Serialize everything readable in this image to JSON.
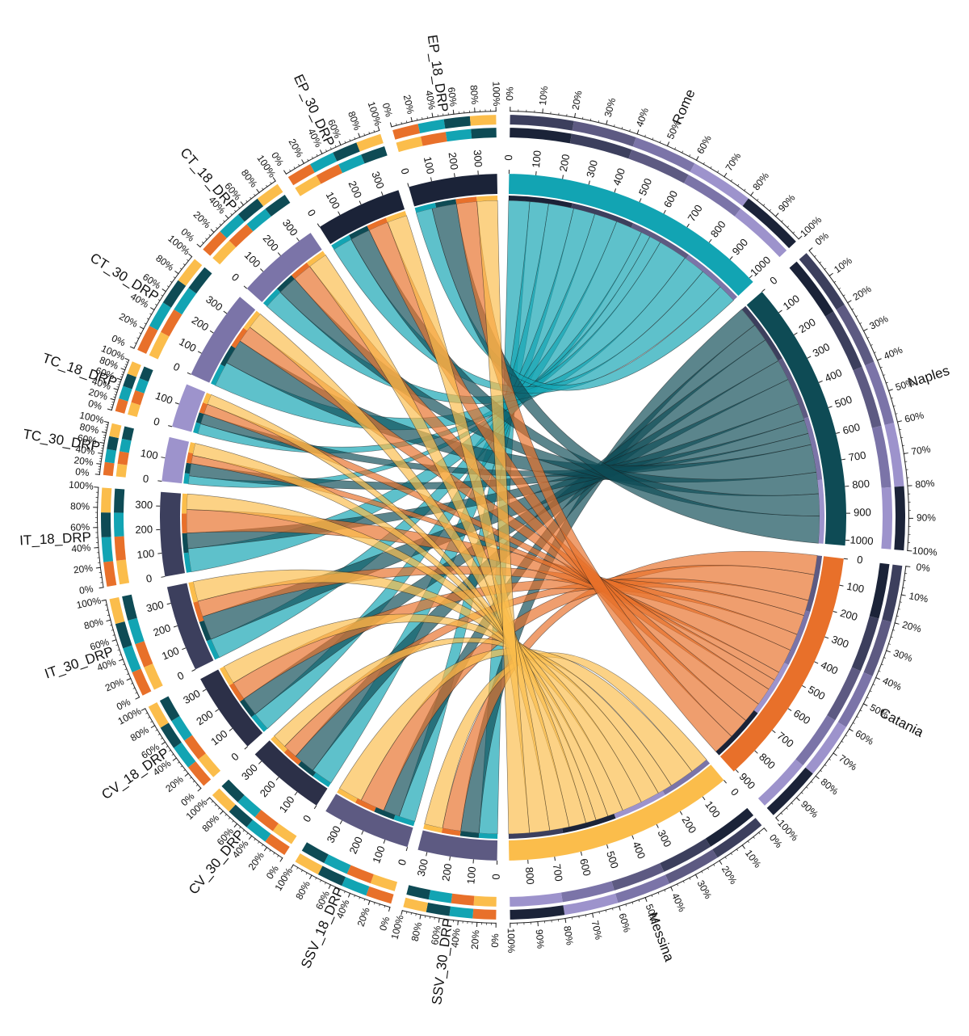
{
  "chart_data": {
    "type": "chord",
    "title": "",
    "palette": {
      "rome": "#12a4b3",
      "naples": "#0e4b55",
      "catania": "#e8702a",
      "messina": "#fbbd4b",
      "dark_navy": "#1b2338",
      "dark_slate": "#3c3f5d",
      "slate_purple": "#5d5a82",
      "mid_purple": "#7b74a8",
      "light_purple": "#9d93cc"
    },
    "sources": [
      {
        "name": "Rome",
        "size": 1020,
        "color": "#12a4b3",
        "ticks": [
          0,
          100,
          200,
          300,
          400,
          500,
          600,
          700,
          800,
          900,
          1000
        ]
      },
      {
        "name": "Naples",
        "size": 1020,
        "color": "#0e4b55",
        "ticks": [
          0,
          100,
          200,
          300,
          400,
          500,
          600,
          700,
          800,
          900,
          1000
        ]
      },
      {
        "name": "Catania",
        "size": 910,
        "color": "#e8702a",
        "ticks": [
          0,
          100,
          200,
          300,
          400,
          500,
          600,
          700,
          800,
          900
        ]
      },
      {
        "name": "Messina",
        "size": 870,
        "color": "#fbbd4b",
        "ticks": [
          0,
          100,
          200,
          300,
          400,
          500,
          600,
          700,
          800
        ]
      }
    ],
    "targets": [
      {
        "name": "SSV_30_DRP",
        "size": 340,
        "color": "#5d5a82",
        "ticks": [
          0,
          100,
          200,
          300
        ],
        "composition": [
          0.25,
          0.25,
          0.25,
          0.25
        ]
      },
      {
        "name": "SSV_18_DRP",
        "size": 380,
        "color": "#5d5a82",
        "ticks": [
          0,
          100,
          200,
          300
        ],
        "composition": [
          0.2,
          0.2,
          0.3,
          0.3
        ]
      },
      {
        "name": "CV_30_DRP",
        "size": 340,
        "color": "#2c3048",
        "ticks": [
          0,
          100,
          200,
          300
        ],
        "composition": [
          0.3,
          0.3,
          0.2,
          0.2
        ]
      },
      {
        "name": "CV_18_DRP",
        "size": 350,
        "color": "#2c3048",
        "ticks": [
          0,
          100,
          200,
          300
        ],
        "composition": [
          0.25,
          0.25,
          0.25,
          0.25
        ]
      },
      {
        "name": "IT_30_DRP",
        "size": 370,
        "color": "#3c3f5d",
        "ticks": [
          0,
          100,
          200,
          300
        ],
        "composition": [
          0.25,
          0.3,
          0.2,
          0.25
        ]
      },
      {
        "name": "IT_18_DRP",
        "size": 360,
        "color": "#3c3f5d",
        "ticks": [
          0,
          100,
          200,
          300
        ],
        "composition": [
          0.3,
          0.2,
          0.3,
          0.2
        ]
      },
      {
        "name": "TC_30_DRP",
        "size": 190,
        "color": "#9d93cc",
        "ticks": [
          0,
          100
        ],
        "composition": [
          0.2,
          0.3,
          0.2,
          0.3
        ]
      },
      {
        "name": "TC_18_DRP",
        "size": 190,
        "color": "#9d93cc",
        "ticks": [
          0,
          100
        ],
        "composition": [
          0.25,
          0.25,
          0.25,
          0.25
        ]
      },
      {
        "name": "CT_30_DRP",
        "size": 390,
        "color": "#7b74a8",
        "ticks": [
          0,
          100,
          200,
          300
        ],
        "composition": [
          0.3,
          0.3,
          0.2,
          0.2
        ]
      },
      {
        "name": "CT_18_DRP",
        "size": 360,
        "color": "#7b74a8",
        "ticks": [
          0,
          100,
          200,
          300
        ],
        "composition": [
          0.25,
          0.25,
          0.25,
          0.25
        ]
      },
      {
        "name": "EP_30_DRP",
        "size": 370,
        "color": "#1b2338",
        "ticks": [
          0,
          100,
          200,
          300
        ],
        "composition": [
          0.25,
          0.25,
          0.25,
          0.25
        ]
      },
      {
        "name": "EP_18_DRP",
        "size": 380,
        "color": "#1b2338",
        "ticks": [
          0,
          100,
          200,
          300
        ],
        "composition": [
          0.2,
          0.3,
          0.25,
          0.25
        ]
      }
    ],
    "source_composition": [
      [
        0.03,
        0.02,
        0.02,
        0.02,
        0.02,
        0.02,
        0.01,
        0.01,
        0.03,
        0.02,
        0.02,
        0.02
      ],
      [
        0.02,
        0.03,
        0.02,
        0.02,
        0.02,
        0.02,
        0.01,
        0.01,
        0.02,
        0.02,
        0.03,
        0.02
      ],
      [
        0.02,
        0.02,
        0.03,
        0.02,
        0.02,
        0.02,
        0.01,
        0.01,
        0.02,
        0.03,
        0.02,
        0.02
      ],
      [
        0.02,
        0.02,
        0.02,
        0.03,
        0.02,
        0.02,
        0.01,
        0.01,
        0.02,
        0.02,
        0.02,
        0.03
      ]
    ],
    "percent_ticks_10": [
      "0%",
      "10%",
      "20%",
      "30%",
      "40%",
      "50%",
      "60%",
      "70%",
      "80%",
      "90%",
      "100%"
    ],
    "percent_ticks_20": [
      "0%",
      "20%",
      "40%",
      "60%",
      "80%",
      "100%"
    ]
  }
}
